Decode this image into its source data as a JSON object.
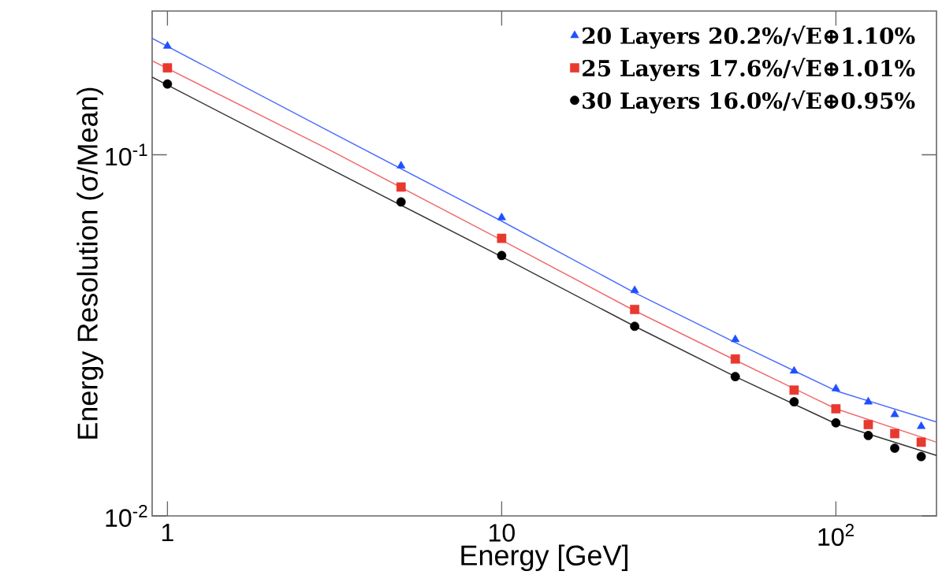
{
  "chart_data": {
    "type": "scatter",
    "xlabel": "Energy [GeV]",
    "ylabel": "Energy Resolution (σ/Mean)",
    "log": "xy",
    "legend": "top right",
    "xlim": [
      0.9,
      200
    ],
    "ylim": [
      0.01,
      0.25
    ],
    "xticks": [
      1,
      10,
      {
        "value": 100,
        "label": "10$^{2}$"
      }
    ],
    "yticks": [
      {
        "value": 0.01,
        "label": "10$^{-2}$"
      },
      {
        "value": 0.1,
        "label": "10$^{-1}$"
      }
    ],
    "series": [
      {
        "name": "20 Layers  20.2%/√E⊕1.10%",
        "marker": "triangle",
        "color": "#1f4fff",
        "x": [
          1,
          5,
          10,
          25,
          50,
          75,
          100,
          125,
          150,
          180
        ],
        "values": [
          0.2,
          0.0932,
          0.067,
          0.0421,
          0.0308,
          0.0252,
          0.0225,
          0.0207,
          0.0191,
          0.0177
        ]
      },
      {
        "name": "25 Layers  17.6%/√E⊕1.01%",
        "marker": "square",
        "color": "#e8392f",
        "x": [
          1,
          5,
          10,
          25,
          50,
          75,
          100,
          125,
          150,
          180
        ],
        "values": [
          0.174,
          0.0814,
          0.0587,
          0.0373,
          0.0272,
          0.0223,
          0.0198,
          0.0179,
          0.0169,
          0.016
        ]
      },
      {
        "name": "30 Layers  16.0%/√E⊕0.95%",
        "marker": "circle",
        "color": "#000000",
        "x": [
          1,
          5,
          10,
          25,
          50,
          75,
          100,
          125,
          150,
          180
        ],
        "values": [
          0.157,
          0.074,
          0.0526,
          0.0335,
          0.0243,
          0.0207,
          0.0181,
          0.0167,
          0.0154,
          0.0146
        ]
      },
      {
        "type": "line",
        "color": "#4a6cff",
        "x": [
          0.9,
          3,
          10,
          25,
          50,
          100,
          200
        ],
        "values": [
          0.21,
          0.117,
          0.0655,
          0.0415,
          0.0302,
          0.0222,
          0.0182
        ]
      },
      {
        "type": "line",
        "color": "#f06a6a",
        "x": [
          0.9,
          3,
          10,
          25,
          50,
          100,
          200
        ],
        "values": [
          0.182,
          0.104,
          0.058,
          0.037,
          0.027,
          0.0198,
          0.016
        ]
      },
      {
        "type": "line",
        "color": "#333333",
        "x": [
          0.9,
          3,
          10,
          25,
          50,
          100,
          200
        ],
        "values": [
          0.164,
          0.0923,
          0.0522,
          0.0335,
          0.0243,
          0.018,
          0.0147
        ]
      }
    ]
  }
}
